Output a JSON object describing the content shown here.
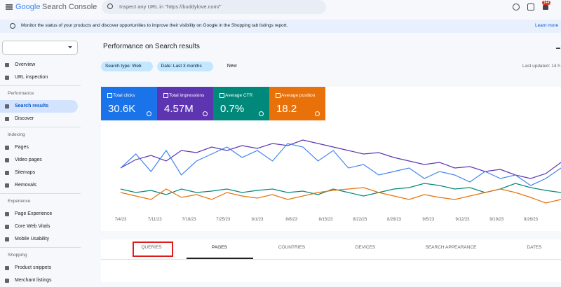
{
  "header": {
    "brand": "Google",
    "product": "Search Console",
    "search_placeholder": "Inspect any URL in \"https://buddylove.com/\"",
    "notification_count": "144"
  },
  "banner": {
    "text": "Monitor the status of your products and discover opportunities to improve their visibility on Google in the Shopping tab listings report.",
    "link": "Learn more"
  },
  "sidebar": {
    "top_items": [
      "Overview",
      "URL inspection"
    ],
    "sections": [
      {
        "title": "Performance",
        "items": [
          "Search results",
          "Discover"
        ]
      },
      {
        "title": "Indexing",
        "items": [
          "Pages",
          "Video pages",
          "Sitemaps",
          "Removals"
        ]
      },
      {
        "title": "Experience",
        "items": [
          "Page Experience",
          "Core Web Vitals",
          "Mobile Usability"
        ]
      },
      {
        "title": "Shopping",
        "items": [
          "Product snippets",
          "Merchant listings"
        ]
      }
    ]
  },
  "main": {
    "title": "Performance on Search results",
    "filters": [
      "Search type: Web",
      "Date: Last 3 months"
    ],
    "new_button": "New",
    "last_updated": "Last updated: 14 h"
  },
  "metrics": [
    {
      "label": "Total clicks",
      "value": "30.6K",
      "color": "#1a73e8"
    },
    {
      "label": "Total impressions",
      "value": "4.57M",
      "color": "#5e35b1"
    },
    {
      "label": "Average CTR",
      "value": "0.7%",
      "color": "#00897b"
    },
    {
      "label": "Average position",
      "value": "18.2",
      "color": "#e8710a"
    }
  ],
  "chart_data": {
    "type": "line",
    "x_labels": [
      "7/4/23",
      "7/11/23",
      "7/18/23",
      "7/25/23",
      "8/1/23",
      "8/8/23",
      "8/15/23",
      "8/22/23",
      "8/29/23",
      "9/5/23",
      "9/12/23",
      "9/19/23",
      "9/26/23"
    ],
    "ylim": [
      0,
      110
    ],
    "series": [
      {
        "name": "Total impressions",
        "color": "#5e35b1",
        "values": [
          60,
          72,
          78,
          70,
          85,
          82,
          90,
          85,
          92,
          88,
          95,
          92,
          100,
          95,
          90,
          85,
          80,
          82,
          75,
          70,
          65,
          68,
          60,
          62,
          55,
          58,
          50,
          45,
          52,
          68
        ]
      },
      {
        "name": "Total clicks",
        "color": "#4285f4",
        "values": [
          60,
          80,
          55,
          85,
          50,
          70,
          80,
          90,
          75,
          85,
          70,
          95,
          90,
          70,
          85,
          60,
          65,
          50,
          55,
          60,
          45,
          55,
          50,
          40,
          55,
          45,
          50,
          35,
          45,
          60
        ]
      },
      {
        "name": "Average CTR",
        "color": "#00897b",
        "values": [
          30,
          25,
          28,
          22,
          30,
          25,
          27,
          30,
          25,
          28,
          30,
          25,
          27,
          22,
          30,
          25,
          20,
          25,
          30,
          32,
          38,
          35,
          30,
          32,
          25,
          30,
          38,
          32,
          28,
          25
        ]
      },
      {
        "name": "Average position",
        "color": "#e8710a",
        "values": [
          25,
          20,
          15,
          30,
          18,
          22,
          15,
          25,
          20,
          17,
          22,
          15,
          20,
          25,
          28,
          30,
          32,
          25,
          20,
          15,
          22,
          18,
          15,
          20,
          25,
          30,
          25,
          18,
          10,
          15
        ]
      }
    ]
  },
  "tabs": [
    "QUERIES",
    "PAGES",
    "COUNTRIES",
    "DEVICES",
    "SEARCH APPEARANCE",
    "DATES"
  ]
}
